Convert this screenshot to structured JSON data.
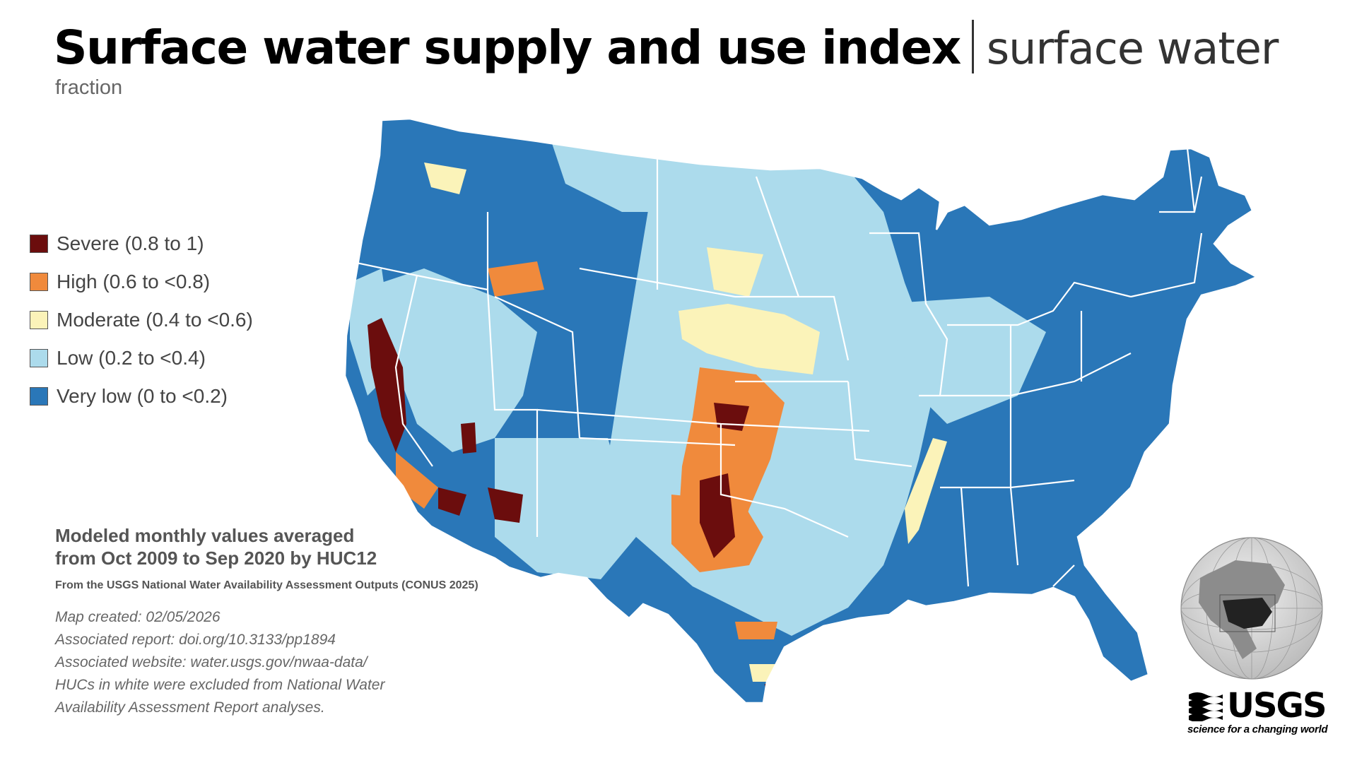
{
  "title": {
    "main": "Surface water supply and use index",
    "sub": "surface water",
    "units": "fraction"
  },
  "legend": [
    {
      "label": "Severe (0.8 to 1)",
      "color": "#6b0d0d"
    },
    {
      "label": "High (0.6 to <0.8)",
      "color": "#f08a3c"
    },
    {
      "label": "Moderate (0.4 to <0.6)",
      "color": "#fbf3b9"
    },
    {
      "label": "Low (0.2 to <0.4)",
      "color": "#acdbec"
    },
    {
      "label": "Very low (0 to <0.2)",
      "color": "#2a77b8"
    }
  ],
  "notes": {
    "heading_line1": "Modeled monthly values averaged",
    "heading_line2": "from Oct 2009 to Sep 2020 by HUC12",
    "source": "From the USGS National Water Availability Assessment Outputs (CONUS 2025)",
    "meta": [
      "Map created: 02/05/2026",
      "Associated report: doi.org/10.3133/pp1894",
      "Associated website: water.usgs.gov/nwaa-data/",
      "HUCs in white were excluded from National Water",
      "Availability Assessment Report analyses."
    ]
  },
  "logo": {
    "text": "USGS",
    "tagline": "science for a changing world"
  },
  "map": {
    "region": "Contiguous United States",
    "border_color": "#ffffff"
  }
}
